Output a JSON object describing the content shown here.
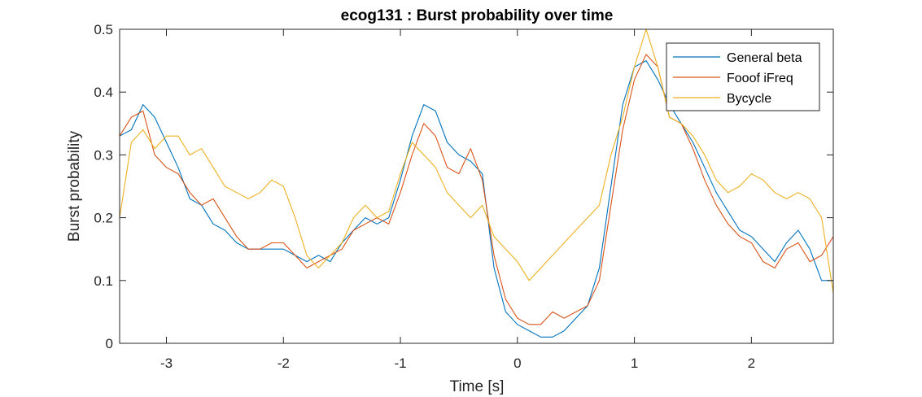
{
  "chart_data": {
    "type": "line",
    "title": "ecog131 : Burst probability over time",
    "xlabel": "Time [s]",
    "ylabel": "Burst probability",
    "xlim": [
      -3.4,
      2.7
    ],
    "ylim": [
      0,
      0.5
    ],
    "xticks": [
      -3,
      -2,
      -1,
      0,
      1,
      2
    ],
    "xtick_labels": [
      "-3",
      "-2",
      "-1",
      "0",
      "1",
      "2"
    ],
    "yticks": [
      0,
      0.1,
      0.2,
      0.3,
      0.4,
      0.5
    ],
    "ytick_labels": [
      "0",
      "0.1",
      "0.2",
      "0.3",
      "0.4",
      "0.5"
    ],
    "grid": false,
    "legend_location": "top-right",
    "series": [
      {
        "name": "General beta",
        "color": "#0072BD",
        "x": [
          -3.4,
          -3.3,
          -3.2,
          -3.1,
          -3.0,
          -2.9,
          -2.8,
          -2.7,
          -2.6,
          -2.5,
          -2.4,
          -2.3,
          -2.2,
          -2.1,
          -2.0,
          -1.9,
          -1.8,
          -1.7,
          -1.6,
          -1.5,
          -1.4,
          -1.3,
          -1.2,
          -1.1,
          -1.0,
          -0.9,
          -0.8,
          -0.7,
          -0.6,
          -0.5,
          -0.4,
          -0.3,
          -0.2,
          -0.1,
          0.0,
          0.1,
          0.2,
          0.3,
          0.4,
          0.5,
          0.6,
          0.7,
          0.8,
          0.9,
          1.0,
          1.1,
          1.2,
          1.3,
          1.4,
          1.5,
          1.6,
          1.7,
          1.8,
          1.9,
          2.0,
          2.1,
          2.2,
          2.3,
          2.4,
          2.5,
          2.6,
          2.7
        ],
        "y": [
          0.33,
          0.34,
          0.38,
          0.36,
          0.32,
          0.28,
          0.23,
          0.22,
          0.19,
          0.18,
          0.16,
          0.15,
          0.15,
          0.15,
          0.15,
          0.14,
          0.13,
          0.14,
          0.13,
          0.16,
          0.18,
          0.2,
          0.19,
          0.2,
          0.26,
          0.33,
          0.38,
          0.37,
          0.32,
          0.3,
          0.29,
          0.27,
          0.12,
          0.05,
          0.03,
          0.02,
          0.01,
          0.01,
          0.02,
          0.04,
          0.06,
          0.12,
          0.25,
          0.38,
          0.44,
          0.45,
          0.42,
          0.38,
          0.35,
          0.32,
          0.28,
          0.24,
          0.21,
          0.18,
          0.17,
          0.15,
          0.13,
          0.16,
          0.18,
          0.15,
          0.1,
          0.1
        ]
      },
      {
        "name": "Fooof iFreq",
        "color": "#D95319",
        "x": [
          -3.4,
          -3.3,
          -3.2,
          -3.1,
          -3.0,
          -2.9,
          -2.8,
          -2.7,
          -2.6,
          -2.5,
          -2.4,
          -2.3,
          -2.2,
          -2.1,
          -2.0,
          -1.9,
          -1.8,
          -1.7,
          -1.6,
          -1.5,
          -1.4,
          -1.3,
          -1.2,
          -1.1,
          -1.0,
          -0.9,
          -0.8,
          -0.7,
          -0.6,
          -0.5,
          -0.4,
          -0.3,
          -0.2,
          -0.1,
          0.0,
          0.1,
          0.2,
          0.3,
          0.4,
          0.5,
          0.6,
          0.7,
          0.8,
          0.9,
          1.0,
          1.1,
          1.2,
          1.3,
          1.4,
          1.5,
          1.6,
          1.7,
          1.8,
          1.9,
          2.0,
          2.1,
          2.2,
          2.3,
          2.4,
          2.5,
          2.6,
          2.7
        ],
        "y": [
          0.33,
          0.36,
          0.37,
          0.3,
          0.28,
          0.27,
          0.24,
          0.22,
          0.23,
          0.2,
          0.17,
          0.15,
          0.15,
          0.16,
          0.16,
          0.14,
          0.12,
          0.13,
          0.14,
          0.15,
          0.18,
          0.19,
          0.2,
          0.19,
          0.24,
          0.3,
          0.35,
          0.33,
          0.28,
          0.27,
          0.31,
          0.26,
          0.14,
          0.07,
          0.04,
          0.03,
          0.03,
          0.05,
          0.04,
          0.05,
          0.06,
          0.1,
          0.22,
          0.34,
          0.42,
          0.46,
          0.44,
          0.36,
          0.35,
          0.31,
          0.26,
          0.22,
          0.19,
          0.17,
          0.16,
          0.13,
          0.12,
          0.15,
          0.16,
          0.13,
          0.14,
          0.17
        ]
      },
      {
        "name": "Bycycle",
        "color": "#EDB120",
        "x": [
          -3.4,
          -3.3,
          -3.2,
          -3.1,
          -3.0,
          -2.9,
          -2.8,
          -2.7,
          -2.6,
          -2.5,
          -2.4,
          -2.3,
          -2.2,
          -2.1,
          -2.0,
          -1.9,
          -1.8,
          -1.7,
          -1.6,
          -1.5,
          -1.4,
          -1.3,
          -1.2,
          -1.1,
          -1.0,
          -0.9,
          -0.8,
          -0.7,
          -0.6,
          -0.5,
          -0.4,
          -0.3,
          -0.2,
          -0.1,
          0.0,
          0.1,
          0.2,
          0.3,
          0.4,
          0.5,
          0.6,
          0.7,
          0.8,
          0.9,
          1.0,
          1.1,
          1.2,
          1.3,
          1.4,
          1.5,
          1.6,
          1.7,
          1.8,
          1.9,
          2.0,
          2.1,
          2.2,
          2.3,
          2.4,
          2.5,
          2.6,
          2.7
        ],
        "y": [
          0.2,
          0.32,
          0.34,
          0.31,
          0.33,
          0.33,
          0.3,
          0.31,
          0.28,
          0.25,
          0.24,
          0.23,
          0.24,
          0.26,
          0.25,
          0.2,
          0.14,
          0.12,
          0.14,
          0.16,
          0.2,
          0.22,
          0.2,
          0.21,
          0.27,
          0.32,
          0.3,
          0.28,
          0.24,
          0.22,
          0.2,
          0.22,
          0.17,
          0.15,
          0.13,
          0.1,
          0.12,
          0.14,
          0.16,
          0.18,
          0.2,
          0.22,
          0.3,
          0.36,
          0.44,
          0.5,
          0.44,
          0.36,
          0.35,
          0.33,
          0.3,
          0.26,
          0.24,
          0.25,
          0.27,
          0.26,
          0.24,
          0.23,
          0.24,
          0.23,
          0.2,
          0.08
        ]
      }
    ]
  }
}
